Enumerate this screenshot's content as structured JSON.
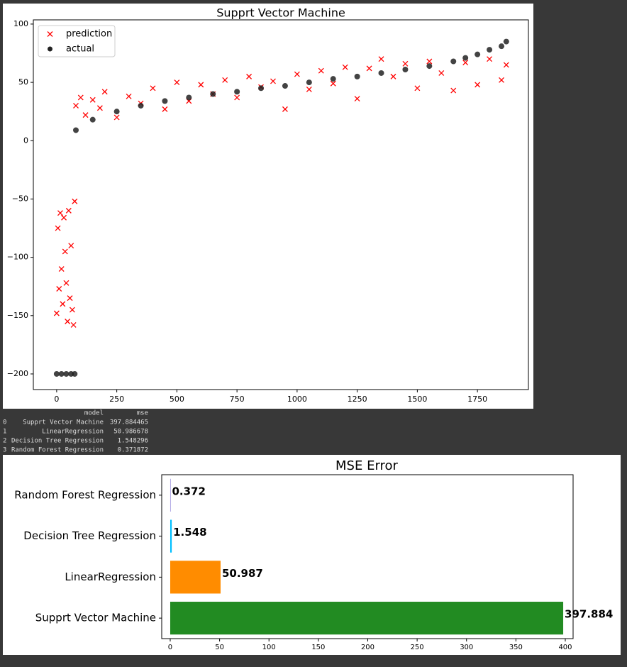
{
  "chart_data": [
    {
      "type": "scatter",
      "title": "Supprt Vector Machine",
      "xlim": [
        -97,
        1962
      ],
      "ylim": [
        -213.4,
        103.6
      ],
      "xticks": [
        0,
        250,
        500,
        750,
        1000,
        1250,
        1500,
        1750
      ],
      "yticks": [
        {
          "value": -200,
          "label": "−200"
        },
        {
          "value": -150,
          "label": "−150"
        },
        {
          "value": -100,
          "label": "−100"
        },
        {
          "value": -50,
          "label": "−50"
        },
        0,
        50,
        100
      ],
      "legend": "upper left",
      "series": [
        {
          "name": "prediction",
          "color": "#ff0000",
          "marker": "x",
          "x": [
            0,
            5,
            10,
            15,
            20,
            25,
            30,
            35,
            40,
            45,
            50,
            55,
            60,
            65,
            70,
            75,
            80,
            100,
            120,
            150,
            180,
            200,
            250,
            300,
            350,
            400,
            450,
            500,
            550,
            600,
            650,
            700,
            750,
            800,
            850,
            900,
            950,
            1000,
            1050,
            1100,
            1150,
            1200,
            1250,
            1300,
            1350,
            1400,
            1450,
            1500,
            1550,
            1600,
            1650,
            1700,
            1750,
            1800,
            1850,
            1870
          ],
          "y": [
            -148,
            -75,
            -127,
            -62,
            -110,
            -140,
            -66,
            -95,
            -122,
            -155,
            -60,
            -135,
            -90,
            -145,
            -158,
            -52,
            30,
            37,
            22,
            35,
            28,
            42,
            20,
            38,
            32,
            45,
            27,
            50,
            34,
            48,
            40,
            52,
            37,
            55,
            46,
            51,
            27,
            57,
            44,
            60,
            49,
            63,
            36,
            62,
            70,
            55,
            66,
            45,
            68,
            58,
            43,
            67,
            48,
            70,
            52,
            65
          ]
        },
        {
          "name": "actual",
          "color": "#222222",
          "marker": "o",
          "x": [
            0,
            20,
            40,
            60,
            75,
            80,
            150,
            250,
            350,
            450,
            550,
            650,
            750,
            850,
            950,
            1050,
            1150,
            1250,
            1350,
            1450,
            1550,
            1650,
            1700,
            1750,
            1800,
            1850,
            1870
          ],
          "y": [
            -200,
            -200,
            -200,
            -200,
            -200,
            9,
            18,
            25,
            30,
            34,
            37,
            40,
            42,
            45,
            47,
            50,
            53,
            55,
            58,
            61,
            64,
            68,
            71,
            74,
            78,
            81,
            85
          ]
        }
      ]
    },
    {
      "type": "bar",
      "orientation": "horizontal",
      "title": "MSE Error",
      "categories": [
        "Supprt Vector Machine",
        "LinearRegression",
        "Decision Tree Regression",
        "Random Forest Regression"
      ],
      "values": [
        397.884465,
        50.986678,
        1.548296,
        0.371872
      ],
      "value_labels": [
        "397.884",
        "50.987",
        "1.548",
        "0.372"
      ],
      "colors": [
        "#228b22",
        "#ff8c00",
        "#00bfff",
        "#6a5acd"
      ],
      "xlim": [
        -8.6,
        407.9
      ],
      "xticks": [
        0,
        50,
        100,
        150,
        200,
        250,
        300,
        350,
        400
      ]
    }
  ],
  "table": {
    "header": [
      "model",
      "mse"
    ],
    "rows": [
      [
        "0",
        "Supprt Vector Machine",
        "397.884465"
      ],
      [
        "1",
        "LinearRegression",
        "50.986678"
      ],
      [
        "2",
        "Decision Tree Regression",
        "1.548296"
      ],
      [
        "3",
        "Random Forest Regression",
        "0.371872"
      ]
    ]
  }
}
